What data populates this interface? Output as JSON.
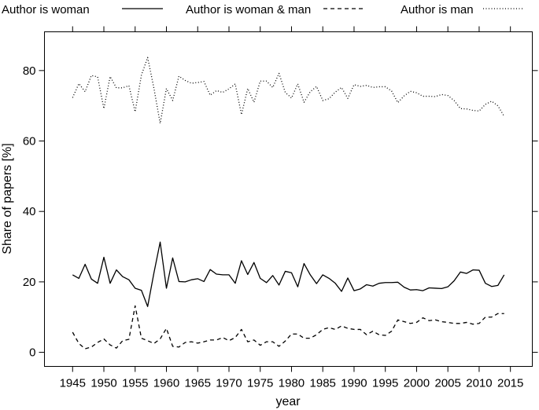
{
  "chart_data": {
    "type": "line",
    "xlabel": "year",
    "ylabel": "Share of papers [%]",
    "xlim": [
      1940.5,
      2018.5
    ],
    "ylim": [
      -4,
      91
    ],
    "x_ticks": [
      1945,
      1950,
      1955,
      1960,
      1965,
      1970,
      1975,
      1980,
      1985,
      1990,
      1995,
      2000,
      2005,
      2010,
      2015
    ],
    "y_ticks": [
      0,
      20,
      40,
      60,
      80
    ],
    "grid": false,
    "legend_position": "top",
    "x": [
      1945,
      1946,
      1947,
      1948,
      1949,
      1950,
      1951,
      1952,
      1953,
      1954,
      1955,
      1956,
      1957,
      1958,
      1959,
      1960,
      1961,
      1962,
      1963,
      1964,
      1965,
      1966,
      1967,
      1968,
      1969,
      1970,
      1971,
      1972,
      1973,
      1974,
      1975,
      1976,
      1977,
      1978,
      1979,
      1980,
      1981,
      1982,
      1983,
      1984,
      1985,
      1986,
      1987,
      1988,
      1989,
      1990,
      1991,
      1992,
      1993,
      1994,
      1995,
      1996,
      1997,
      1998,
      1999,
      2000,
      2001,
      2002,
      2003,
      2004,
      2005,
      2006,
      2007,
      2008,
      2009,
      2010,
      2011,
      2012,
      2013,
      2014
    ],
    "series": [
      {
        "name": "Author is woman",
        "style": "solid",
        "values": [
          22,
          21,
          25,
          20.8,
          19.6,
          27,
          19.6,
          23.4,
          21.5,
          20.6,
          18.2,
          17.6,
          13,
          22.5,
          31.3,
          18.2,
          26.8,
          20.1,
          20,
          20.6,
          20.9,
          20.1,
          23.5,
          22.2,
          22,
          22,
          19.6,
          26,
          22.1,
          25.5,
          21,
          19.8,
          21.8,
          19.1,
          23,
          22.6,
          18.6,
          25.2,
          22,
          19.5,
          22,
          21,
          19.6,
          17.3,
          21.1,
          17.5,
          18,
          19.2,
          18.8,
          19.6,
          19.8,
          19.8,
          19.9,
          18.5,
          17.7,
          17.8,
          17.5,
          18.3,
          18.2,
          18.1,
          18.6,
          20.3,
          22.8,
          22.4,
          23.4,
          23.3,
          19.6,
          18.7,
          19,
          22
        ]
      },
      {
        "name": "Author is woman & man",
        "style": "dashed",
        "values": [
          5.7,
          2.5,
          1,
          1.5,
          2.8,
          3.8,
          2.1,
          1.2,
          3.3,
          3.7,
          13.2,
          4,
          3.3,
          2.5,
          3.8,
          6.8,
          1.7,
          1.5,
          2.8,
          3,
          2.6,
          3,
          3.5,
          3.5,
          4.2,
          3.3,
          4.2,
          6.5,
          3,
          3.5,
          2,
          3,
          3,
          1.7,
          3.2,
          5.2,
          5.2,
          4,
          4,
          5,
          6.5,
          7,
          6.5,
          7.5,
          6.8,
          6.5,
          6.5,
          5,
          6,
          5,
          4.8,
          6,
          9.2,
          8.7,
          8.2,
          8.5,
          9.8,
          9,
          9.2,
          8.7,
          8.5,
          8.2,
          8.2,
          8.5,
          8,
          8.2,
          10,
          10,
          11,
          11
        ]
      },
      {
        "name": "Author is man",
        "style": "dotted",
        "values": [
          72.3,
          76.3,
          74,
          78.6,
          78.2,
          69.2,
          78.3,
          75.1,
          75.1,
          75.7,
          68.3,
          78.7,
          83.7,
          75,
          65,
          74.9,
          71.5,
          78.4,
          77.2,
          76.4,
          76.6,
          76.9,
          73,
          74.3,
          73.8,
          74.8,
          76.2,
          67.5,
          74.9,
          71,
          77,
          77,
          75.2,
          79.2,
          73.8,
          72.2,
          76.2,
          71,
          74,
          75.5,
          71.5,
          72,
          73.9,
          75.2,
          72.1,
          76,
          75.5,
          75.8,
          75.2,
          75.4,
          75.4,
          74.2,
          70.9,
          72.8,
          74.1,
          73.7,
          72.7,
          72.7,
          72.6,
          73.2,
          72.9,
          71.5,
          69.2,
          69.1,
          68.7,
          68.5,
          70.4,
          71.3,
          70,
          67
        ]
      }
    ]
  }
}
